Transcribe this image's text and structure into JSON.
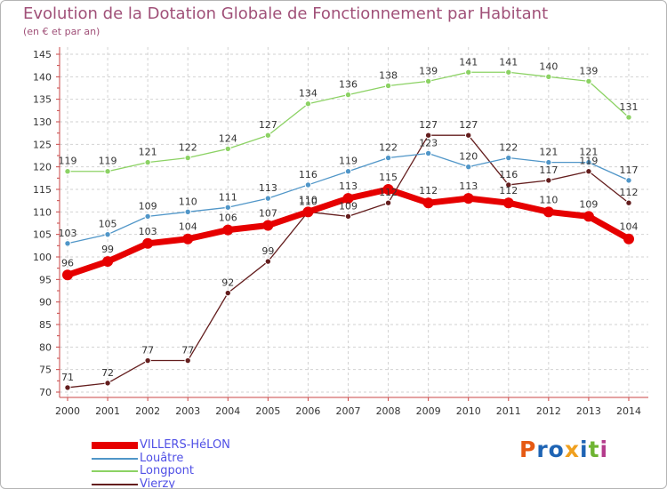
{
  "chart_data": {
    "type": "line",
    "title": "Evolution de la Dotation Globale de Fonctionnement par Habitant",
    "subtitle": "(en € et par an)",
    "xlabel": "",
    "ylabel": "",
    "x": [
      "2000",
      "2001",
      "2002",
      "2003",
      "2004",
      "2005",
      "2006",
      "2007",
      "2008",
      "2009",
      "2010",
      "2011",
      "2012",
      "2013",
      "2014"
    ],
    "ylim": [
      70,
      145
    ],
    "yticks": [
      "70",
      "75",
      "80",
      "85",
      "90",
      "95",
      "100",
      "105",
      "110",
      "115",
      "120",
      "125",
      "130",
      "135",
      "140",
      "145"
    ],
    "grid": true,
    "legend_position": "bottom-left",
    "series": [
      {
        "name": "Vierzy",
        "color": "#641e1e",
        "values": [
          71,
          72,
          77,
          77,
          92,
          99,
          110,
          109,
          112,
          127,
          127,
          116,
          117,
          119,
          112
        ]
      },
      {
        "name": "Longpont",
        "color": "#8cd264",
        "values": [
          119,
          119,
          121,
          122,
          124,
          127,
          134,
          136,
          138,
          139,
          141,
          141,
          140,
          139,
          131
        ]
      },
      {
        "name": "Louâtre",
        "color": "#5096c8",
        "values": [
          103,
          105,
          109,
          110,
          111,
          113,
          116,
          119,
          122,
          123,
          120,
          122,
          121,
          121,
          117
        ]
      },
      {
        "name": "VILLERS-HéLON",
        "color": "#e60000",
        "values": [
          96,
          99,
          103,
          104,
          106,
          107,
          110,
          113,
          115,
          112,
          113,
          112,
          110,
          109,
          104
        ]
      }
    ],
    "legend_order": [
      "VILLERS-HéLON",
      "Louâtre",
      "Longpont",
      "Vierzy"
    ]
  },
  "logo": {
    "text": "Proxiti",
    "colors": [
      "#e65a14",
      "#1e64b4",
      "#1e64b4",
      "#f0a01e",
      "#1e64b4",
      "#6eb432",
      "#b43c8c"
    ]
  }
}
